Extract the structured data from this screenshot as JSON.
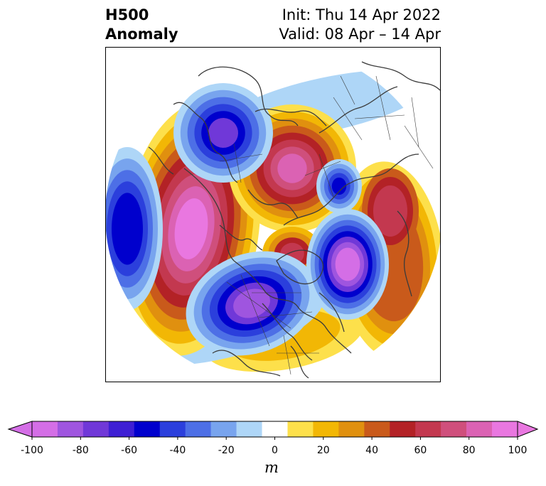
{
  "title": {
    "left_line1": "H500",
    "left_line2": "Anomaly",
    "right_line1": "Init: Thu 14 Apr 2022",
    "right_line2": "Valid: 08 Apr – 14 Apr"
  },
  "colorbar": {
    "units": "m",
    "tick_labels": [
      "-100",
      "-80",
      "-60",
      "-40",
      "-20",
      "0",
      "20",
      "40",
      "60",
      "80",
      "100"
    ],
    "levels": [
      -100,
      -90,
      -80,
      -70,
      -60,
      -50,
      -40,
      -30,
      -20,
      -10,
      10,
      20,
      30,
      40,
      50,
      60,
      70,
      80,
      90,
      100
    ],
    "neg_colors": [
      "#d46ee6",
      "#9f55df",
      "#7038d8",
      "#3e1fd4",
      "#0000cd",
      "#2b3fdc",
      "#4d6fe6",
      "#78a4ee",
      "#aed6f7"
    ],
    "zero_color": "#ffffff",
    "pos_colors": [
      "#fde04b",
      "#f2b705",
      "#e0900f",
      "#c95a1b",
      "#b32226",
      "#c3384f",
      "#cf4f7c",
      "#db62b3",
      "#e977e0"
    ],
    "extend": "both"
  },
  "map": {
    "projection": "north-polar-stereographic",
    "field": "500 hPa geopotential height anomaly",
    "colors": {
      "white": "#ffffff",
      "blue_pale": "#aed6f7",
      "blue_light": "#78a4ee",
      "blue_mid": "#4d6fe6",
      "blue_deep": "#2b3fdc",
      "blue_navy": "#0000cd",
      "purple": "#7038d8",
      "violet": "#9f55df",
      "magenta_neg": "#d46ee6",
      "yellow": "#fde04b",
      "gold": "#f2b705",
      "orange": "#e0900f",
      "rust": "#c95a1b",
      "red": "#b32226",
      "crimson": "#c3384f",
      "rose": "#cf4f7c",
      "pink": "#db62b3",
      "magenta_pos": "#e977e0",
      "coast": "#3b3b3b"
    }
  }
}
